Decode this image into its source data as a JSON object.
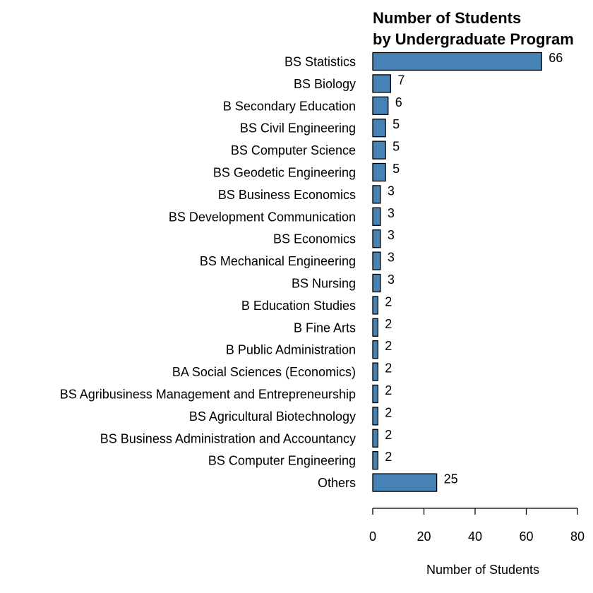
{
  "chart_data": {
    "type": "bar",
    "orientation": "horizontal",
    "title_lines": [
      "Number of Students",
      "by Undergraduate Program"
    ],
    "xlabel": "Number of Students",
    "ylabel": "",
    "xlim": [
      0,
      80
    ],
    "xticks": [
      0,
      20,
      40,
      60,
      80
    ],
    "bar_color": "#4682B4",
    "grid": false,
    "categories": [
      "BS Statistics",
      "BS Biology",
      "B Secondary Education",
      "BS Civil Engineering",
      "BS Computer Science",
      "BS Geodetic Engineering",
      "BS Business Economics",
      "BS Development Communication",
      "BS Economics",
      "BS Mechanical Engineering",
      "BS Nursing",
      "B Education Studies",
      "B Fine Arts",
      "B Public Administration",
      "BA Social Sciences (Economics)",
      "BS Agribusiness Management and Entrepreneurship",
      "BS Agricultural Biotechnology",
      "BS Business Administration and Accountancy",
      "BS Computer Engineering",
      "Others"
    ],
    "values": [
      66,
      7,
      6,
      5,
      5,
      5,
      3,
      3,
      3,
      3,
      3,
      2,
      2,
      2,
      2,
      2,
      2,
      2,
      2,
      25
    ]
  }
}
